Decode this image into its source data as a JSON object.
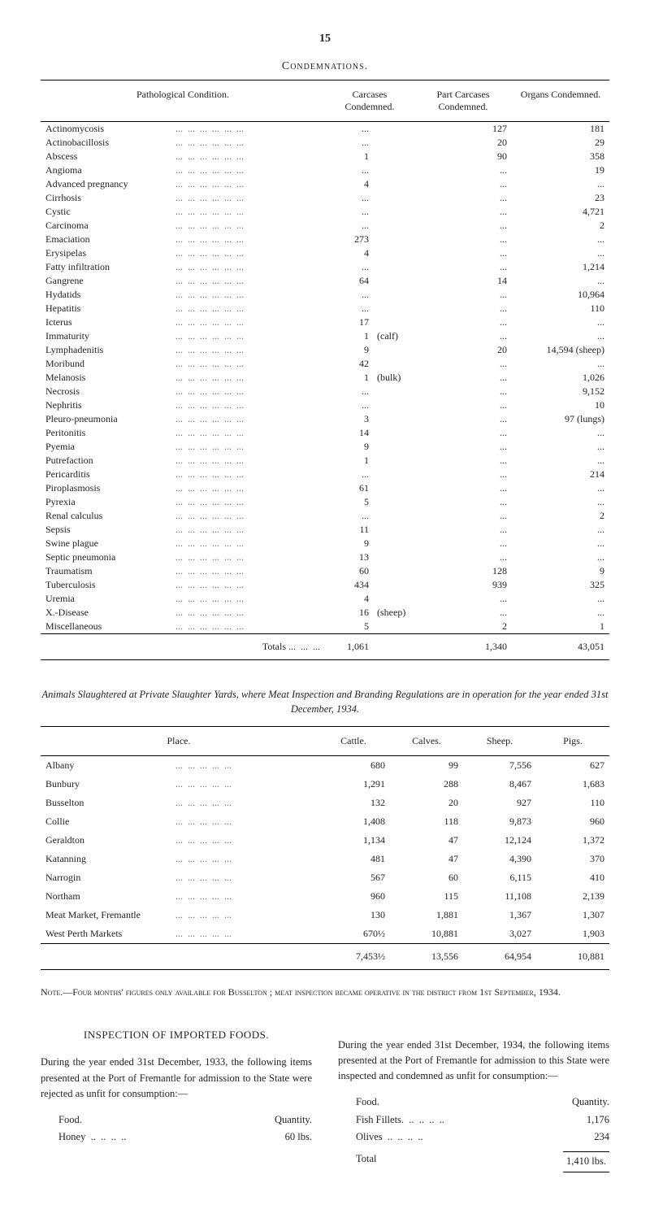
{
  "page_number": "15",
  "condemnations": {
    "title": "Condemnations.",
    "columns": [
      "Pathological Condition.",
      "Carcases Condemned.",
      "Part Carcases Condemned.",
      "Organs Condemned."
    ],
    "rows": [
      {
        "name": "Actinomycosis",
        "carc": "...",
        "carc_note": "",
        "part": "127",
        "org": "181"
      },
      {
        "name": "Actinobacillosis",
        "carc": "...",
        "carc_note": "",
        "part": "20",
        "org": "29"
      },
      {
        "name": "Abscess",
        "carc": "1",
        "carc_note": "",
        "part": "90",
        "org": "358"
      },
      {
        "name": "Angioma",
        "carc": "...",
        "carc_note": "",
        "part": "...",
        "org": "19"
      },
      {
        "name": "Advanced pregnancy",
        "carc": "4",
        "carc_note": "",
        "part": "...",
        "org": "..."
      },
      {
        "name": "Cirrhosis",
        "carc": "...",
        "carc_note": "",
        "part": "...",
        "org": "23"
      },
      {
        "name": "Cystic",
        "carc": "...",
        "carc_note": "",
        "part": "...",
        "org": "4,721"
      },
      {
        "name": "Carcinoma",
        "carc": "...",
        "carc_note": "",
        "part": "...",
        "org": "2"
      },
      {
        "name": "Emaciation",
        "carc": "273",
        "carc_note": "",
        "part": "...",
        "org": "..."
      },
      {
        "name": "Erysipelas",
        "carc": "4",
        "carc_note": "",
        "part": "...",
        "org": "..."
      },
      {
        "name": "Fatty infiltration",
        "carc": "...",
        "carc_note": "",
        "part": "...",
        "org": "1,214"
      },
      {
        "name": "Gangrene",
        "carc": "64",
        "carc_note": "",
        "part": "14",
        "org": "..."
      },
      {
        "name": "Hydatids",
        "carc": "...",
        "carc_note": "",
        "part": "...",
        "org": "10,964"
      },
      {
        "name": "Hepatitis",
        "carc": "...",
        "carc_note": "",
        "part": "...",
        "org": "110"
      },
      {
        "name": "Icterus",
        "carc": "17",
        "carc_note": "",
        "part": "...",
        "org": "..."
      },
      {
        "name": "Immaturity",
        "carc": "1",
        "carc_note": "(calf)",
        "part": "...",
        "org": "..."
      },
      {
        "name": "Lymphadenitis",
        "carc": "9",
        "carc_note": "",
        "part": "20",
        "org": "14,594 (sheep)"
      },
      {
        "name": "Moribund",
        "carc": "42",
        "carc_note": "",
        "part": "...",
        "org": "..."
      },
      {
        "name": "Melanosis",
        "carc": "1",
        "carc_note": "(bulk)",
        "part": "...",
        "org": "1,026"
      },
      {
        "name": "Necrosis",
        "carc": "...",
        "carc_note": "",
        "part": "...",
        "org": "9,152"
      },
      {
        "name": "Nephritis",
        "carc": "...",
        "carc_note": "",
        "part": "...",
        "org": "10"
      },
      {
        "name": "Pleuro-pneumonia",
        "carc": "3",
        "carc_note": "",
        "part": "...",
        "org": "97 (lungs)"
      },
      {
        "name": "Peritonitis",
        "carc": "14",
        "carc_note": "",
        "part": "...",
        "org": "..."
      },
      {
        "name": "Pyemia",
        "carc": "9",
        "carc_note": "",
        "part": "...",
        "org": "..."
      },
      {
        "name": "Putrefaction",
        "carc": "1",
        "carc_note": "",
        "part": "...",
        "org": "..."
      },
      {
        "name": "Pericarditis",
        "carc": "...",
        "carc_note": "",
        "part": "...",
        "org": "214"
      },
      {
        "name": "Piroplasmosis",
        "carc": "61",
        "carc_note": "",
        "part": "...",
        "org": "..."
      },
      {
        "name": "Pyrexia",
        "carc": "5",
        "carc_note": "",
        "part": "...",
        "org": "..."
      },
      {
        "name": "Renal calculus",
        "carc": "...",
        "carc_note": "",
        "part": "...",
        "org": "2"
      },
      {
        "name": "Sepsis",
        "carc": "11",
        "carc_note": "",
        "part": "...",
        "org": "..."
      },
      {
        "name": "Swine plague",
        "carc": "9",
        "carc_note": "",
        "part": "...",
        "org": "..."
      },
      {
        "name": "Septic pneumonia",
        "carc": "13",
        "carc_note": "",
        "part": "...",
        "org": "..."
      },
      {
        "name": "Traumatism",
        "carc": "60",
        "carc_note": "",
        "part": "128",
        "org": "9"
      },
      {
        "name": "Tuberculosis",
        "carc": "434",
        "carc_note": "",
        "part": "939",
        "org": "325"
      },
      {
        "name": "Uremia",
        "carc": "4",
        "carc_note": "",
        "part": "...",
        "org": "..."
      },
      {
        "name": "X.-Disease",
        "carc": "16",
        "carc_note": "(sheep)",
        "part": "...",
        "org": "..."
      },
      {
        "name": "Miscellaneous",
        "carc": "5",
        "carc_note": "",
        "part": "2",
        "org": "1"
      }
    ],
    "totals": {
      "label": "Totals ...",
      "carc": "1,061",
      "part": "1,340",
      "org": "43,051"
    }
  },
  "yards": {
    "caption": "Animals Slaughtered at Private Slaughter Yards, where Meat Inspection and Branding Regulations are in operation for the year ended 31st December, 1934.",
    "columns": [
      "Place.",
      "Cattle.",
      "Calves.",
      "Sheep.",
      "Pigs."
    ],
    "rows": [
      {
        "name": "Albany",
        "cattle": "680",
        "calves": "99",
        "sheep": "7,556",
        "pigs": "627"
      },
      {
        "name": "Bunbury",
        "cattle": "1,291",
        "calves": "288",
        "sheep": "8,467",
        "pigs": "1,683"
      },
      {
        "name": "Busselton",
        "cattle": "132",
        "calves": "20",
        "sheep": "927",
        "pigs": "110"
      },
      {
        "name": "Collie",
        "cattle": "1,408",
        "calves": "118",
        "sheep": "9,873",
        "pigs": "960"
      },
      {
        "name": "Geraldton",
        "cattle": "1,134",
        "calves": "47",
        "sheep": "12,124",
        "pigs": "1,372"
      },
      {
        "name": "Katanning",
        "cattle": "481",
        "calves": "47",
        "sheep": "4,390",
        "pigs": "370"
      },
      {
        "name": "Narrogin",
        "cattle": "567",
        "calves": "60",
        "sheep": "6,115",
        "pigs": "410"
      },
      {
        "name": "Northam",
        "cattle": "960",
        "calves": "115",
        "sheep": "11,108",
        "pigs": "2,139"
      },
      {
        "name": "Meat Market, Fremantle",
        "cattle": "130",
        "calves": "1,881",
        "sheep": "1,367",
        "pigs": "1,307"
      },
      {
        "name": "West Perth Markets",
        "cattle": "670½",
        "calves": "10,881",
        "sheep": "3,027",
        "pigs": "1,903"
      }
    ],
    "totals": {
      "cattle": "7,453½",
      "calves": "13,556",
      "sheep": "64,954",
      "pigs": "10,881"
    }
  },
  "note": "Note.—Four months' figures only available for Busselton ; meat inspection became operative in the district from 1st September, 1934.",
  "left_col": {
    "heading": "INSPECTION OF IMPORTED FOODS.",
    "para": "During the year ended 31st December, 1933, the following items presented at the Port of Fremantle for admission to the State were rejected as unfit for consumption:—",
    "food_header": "Food.",
    "qty_header": "Quantity.",
    "items": [
      {
        "name": "Honey",
        "qty": "60 lbs."
      }
    ]
  },
  "right_col": {
    "para": "During the year ended 31st December, 1934, the following items presented at the Port of Fremantle for admission to this State were inspected and condemned as unfit for consumption:—",
    "food_header": "Food.",
    "qty_header": "Quantity.",
    "items": [
      {
        "name": "Fish Fillets.",
        "qty": "1,176"
      },
      {
        "name": "Olives",
        "qty": "234"
      }
    ],
    "total_label": "Total",
    "total_value": "1,410 lbs."
  }
}
